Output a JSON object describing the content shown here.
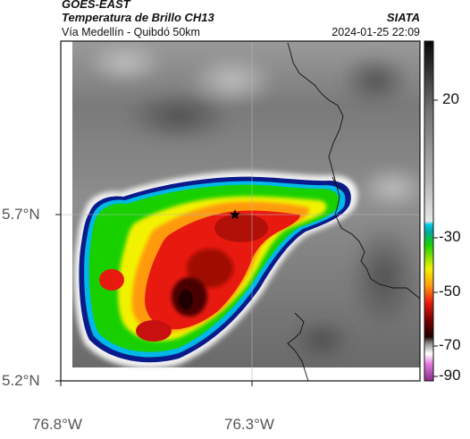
{
  "header": {
    "satellite": "GOES-EAST",
    "product": "Temperatura de Brillo CH13",
    "route": "Vía Medellín - Quibdó 50km",
    "brand": "SIATA",
    "datetime": "2024-01-25 22:09"
  },
  "axes": {
    "lat_ticks": [
      "5.7°N",
      "5.2°N"
    ],
    "lon_ticks": [
      "76.8°W",
      "76.3°W"
    ]
  },
  "colorbar": {
    "ticks": [
      "20",
      "-30",
      "-50",
      "-70",
      "-90"
    ]
  },
  "marker": {
    "icon": "star-icon"
  },
  "colors": {
    "cold_core": "#200000",
    "red": "#e81a10",
    "yellow": "#f2f200",
    "green": "#18d000",
    "cyan": "#00b8e8",
    "blue": "#0a1a8a",
    "background_gray": "#8a8a8a"
  }
}
